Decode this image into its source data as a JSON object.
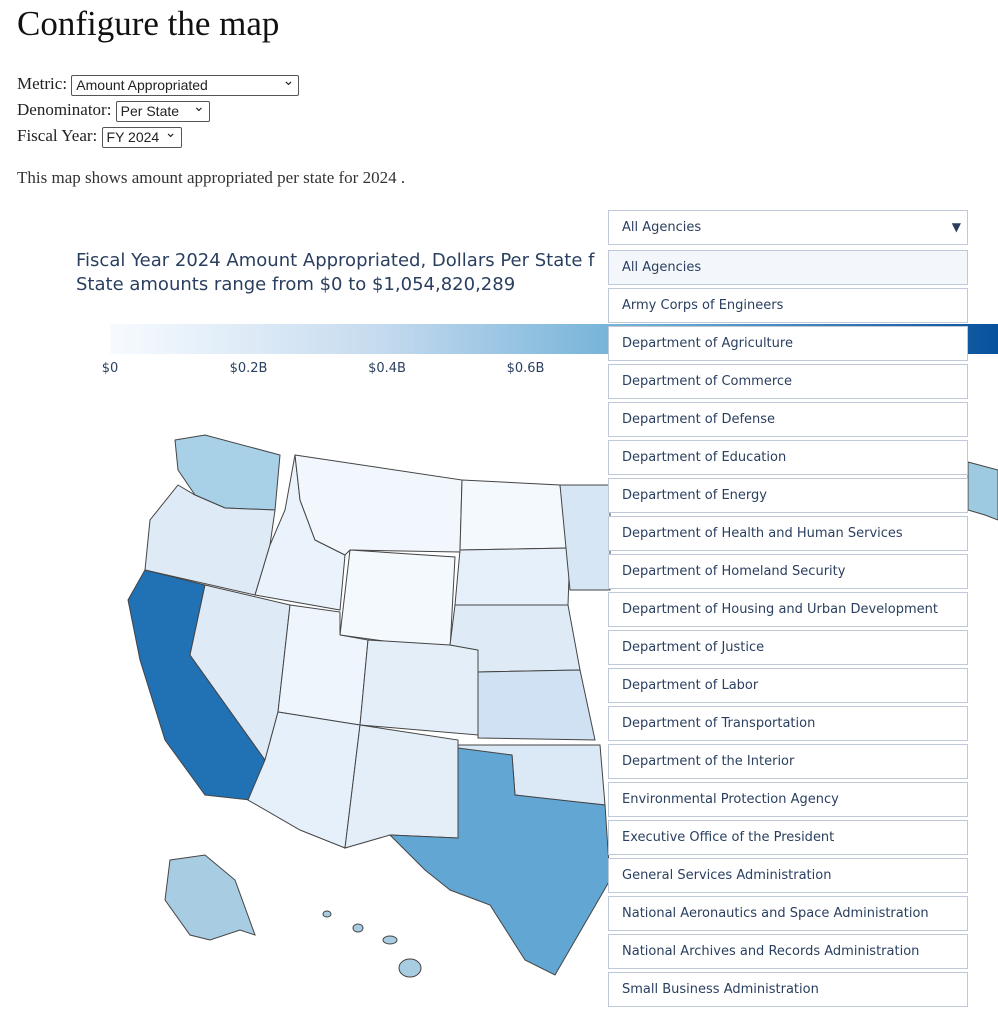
{
  "header": {
    "title": "Configure the map"
  },
  "controls": {
    "metric": {
      "label": "Metric:",
      "value": "Amount Appropriated"
    },
    "denominator": {
      "label": "Denominator:",
      "value": "Per State"
    },
    "fiscal_year": {
      "label": "Fiscal Year:",
      "value": "FY 2024"
    }
  },
  "description": "This map shows amount appropriated per state for 2024 .",
  "map": {
    "title": "Fiscal Year 2024 Amount Appropriated, Dollars Per State f",
    "subtitle": "State amounts range from $0 to $1,054,820,289",
    "colorbar_ticks": [
      {
        "value": 0,
        "label": "$0"
      },
      {
        "value": 200000000,
        "label": "$0.2B"
      },
      {
        "value": 400000000,
        "label": "$0.4B"
      },
      {
        "value": 600000000,
        "label": "$0.6B"
      }
    ]
  },
  "agency_dropdown": {
    "selected": "All Agencies",
    "options": [
      "All Agencies",
      "Army Corps of Engineers",
      "Department of Agriculture",
      "Department of Commerce",
      "Department of Defense",
      "Department of Education",
      "Department of Energy",
      "Department of Health and Human Services",
      "Department of Homeland Security",
      "Department of Housing and Urban Development",
      "Department of Justice",
      "Department of Labor",
      "Department of Transportation",
      "Department of the Interior",
      "Environmental Protection Agency",
      "Executive Office of the President",
      "General Services Administration",
      "National Aeronautics and Space Administration",
      "National Archives and Records Administration",
      "Small Business Administration"
    ]
  }
}
